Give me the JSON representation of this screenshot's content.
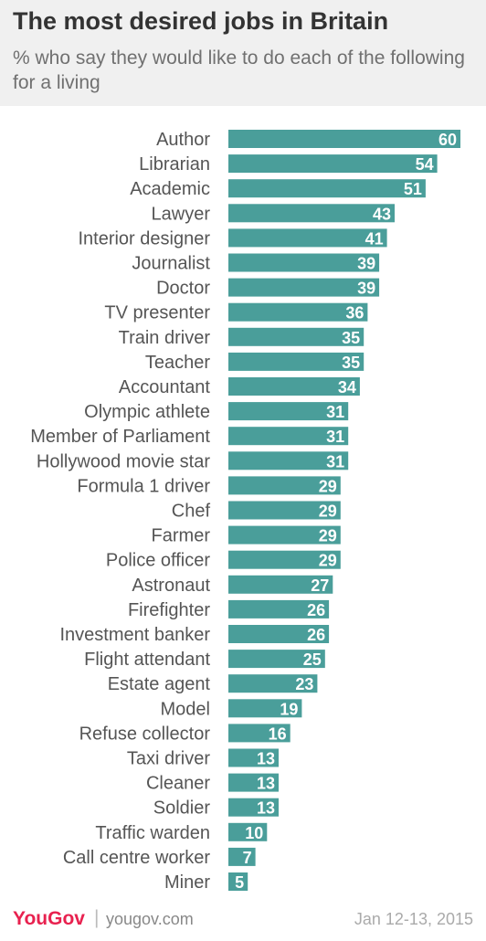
{
  "title": "The most desired jobs in Britain",
  "subtitle": "% who say they would like to do each of the following for a living",
  "footer": {
    "brand": "YouGov",
    "separator": "|",
    "site": "yougov.com",
    "date": "Jan 12-13, 2015"
  },
  "colors": {
    "bar": "#4a9e9a",
    "label": "#555555",
    "value": "#ffffff"
  },
  "chart_data": {
    "type": "bar",
    "orientation": "horizontal",
    "xlim": [
      0,
      60
    ],
    "grid": false,
    "legend": "none",
    "categories": [
      "Author",
      "Librarian",
      "Academic",
      "Lawyer",
      "Interior designer",
      "Journalist",
      "Doctor",
      "TV presenter",
      "Train driver",
      "Teacher",
      "Accountant",
      "Olympic athlete",
      "Member of Parliament",
      "Hollywood movie star",
      "Formula 1 driver",
      "Chef",
      "Farmer",
      "Police officer",
      "Astronaut",
      "Firefighter",
      "Investment banker",
      "Flight attendant",
      "Estate agent",
      "Model",
      "Refuse collector",
      "Taxi driver",
      "Cleaner",
      "Soldier",
      "Traffic warden",
      "Call centre worker",
      "Miner"
    ],
    "values": [
      60,
      54,
      51,
      43,
      41,
      39,
      39,
      36,
      35,
      35,
      34,
      31,
      31,
      31,
      29,
      29,
      29,
      29,
      27,
      26,
      26,
      25,
      23,
      19,
      16,
      13,
      13,
      13,
      10,
      7,
      5
    ]
  }
}
